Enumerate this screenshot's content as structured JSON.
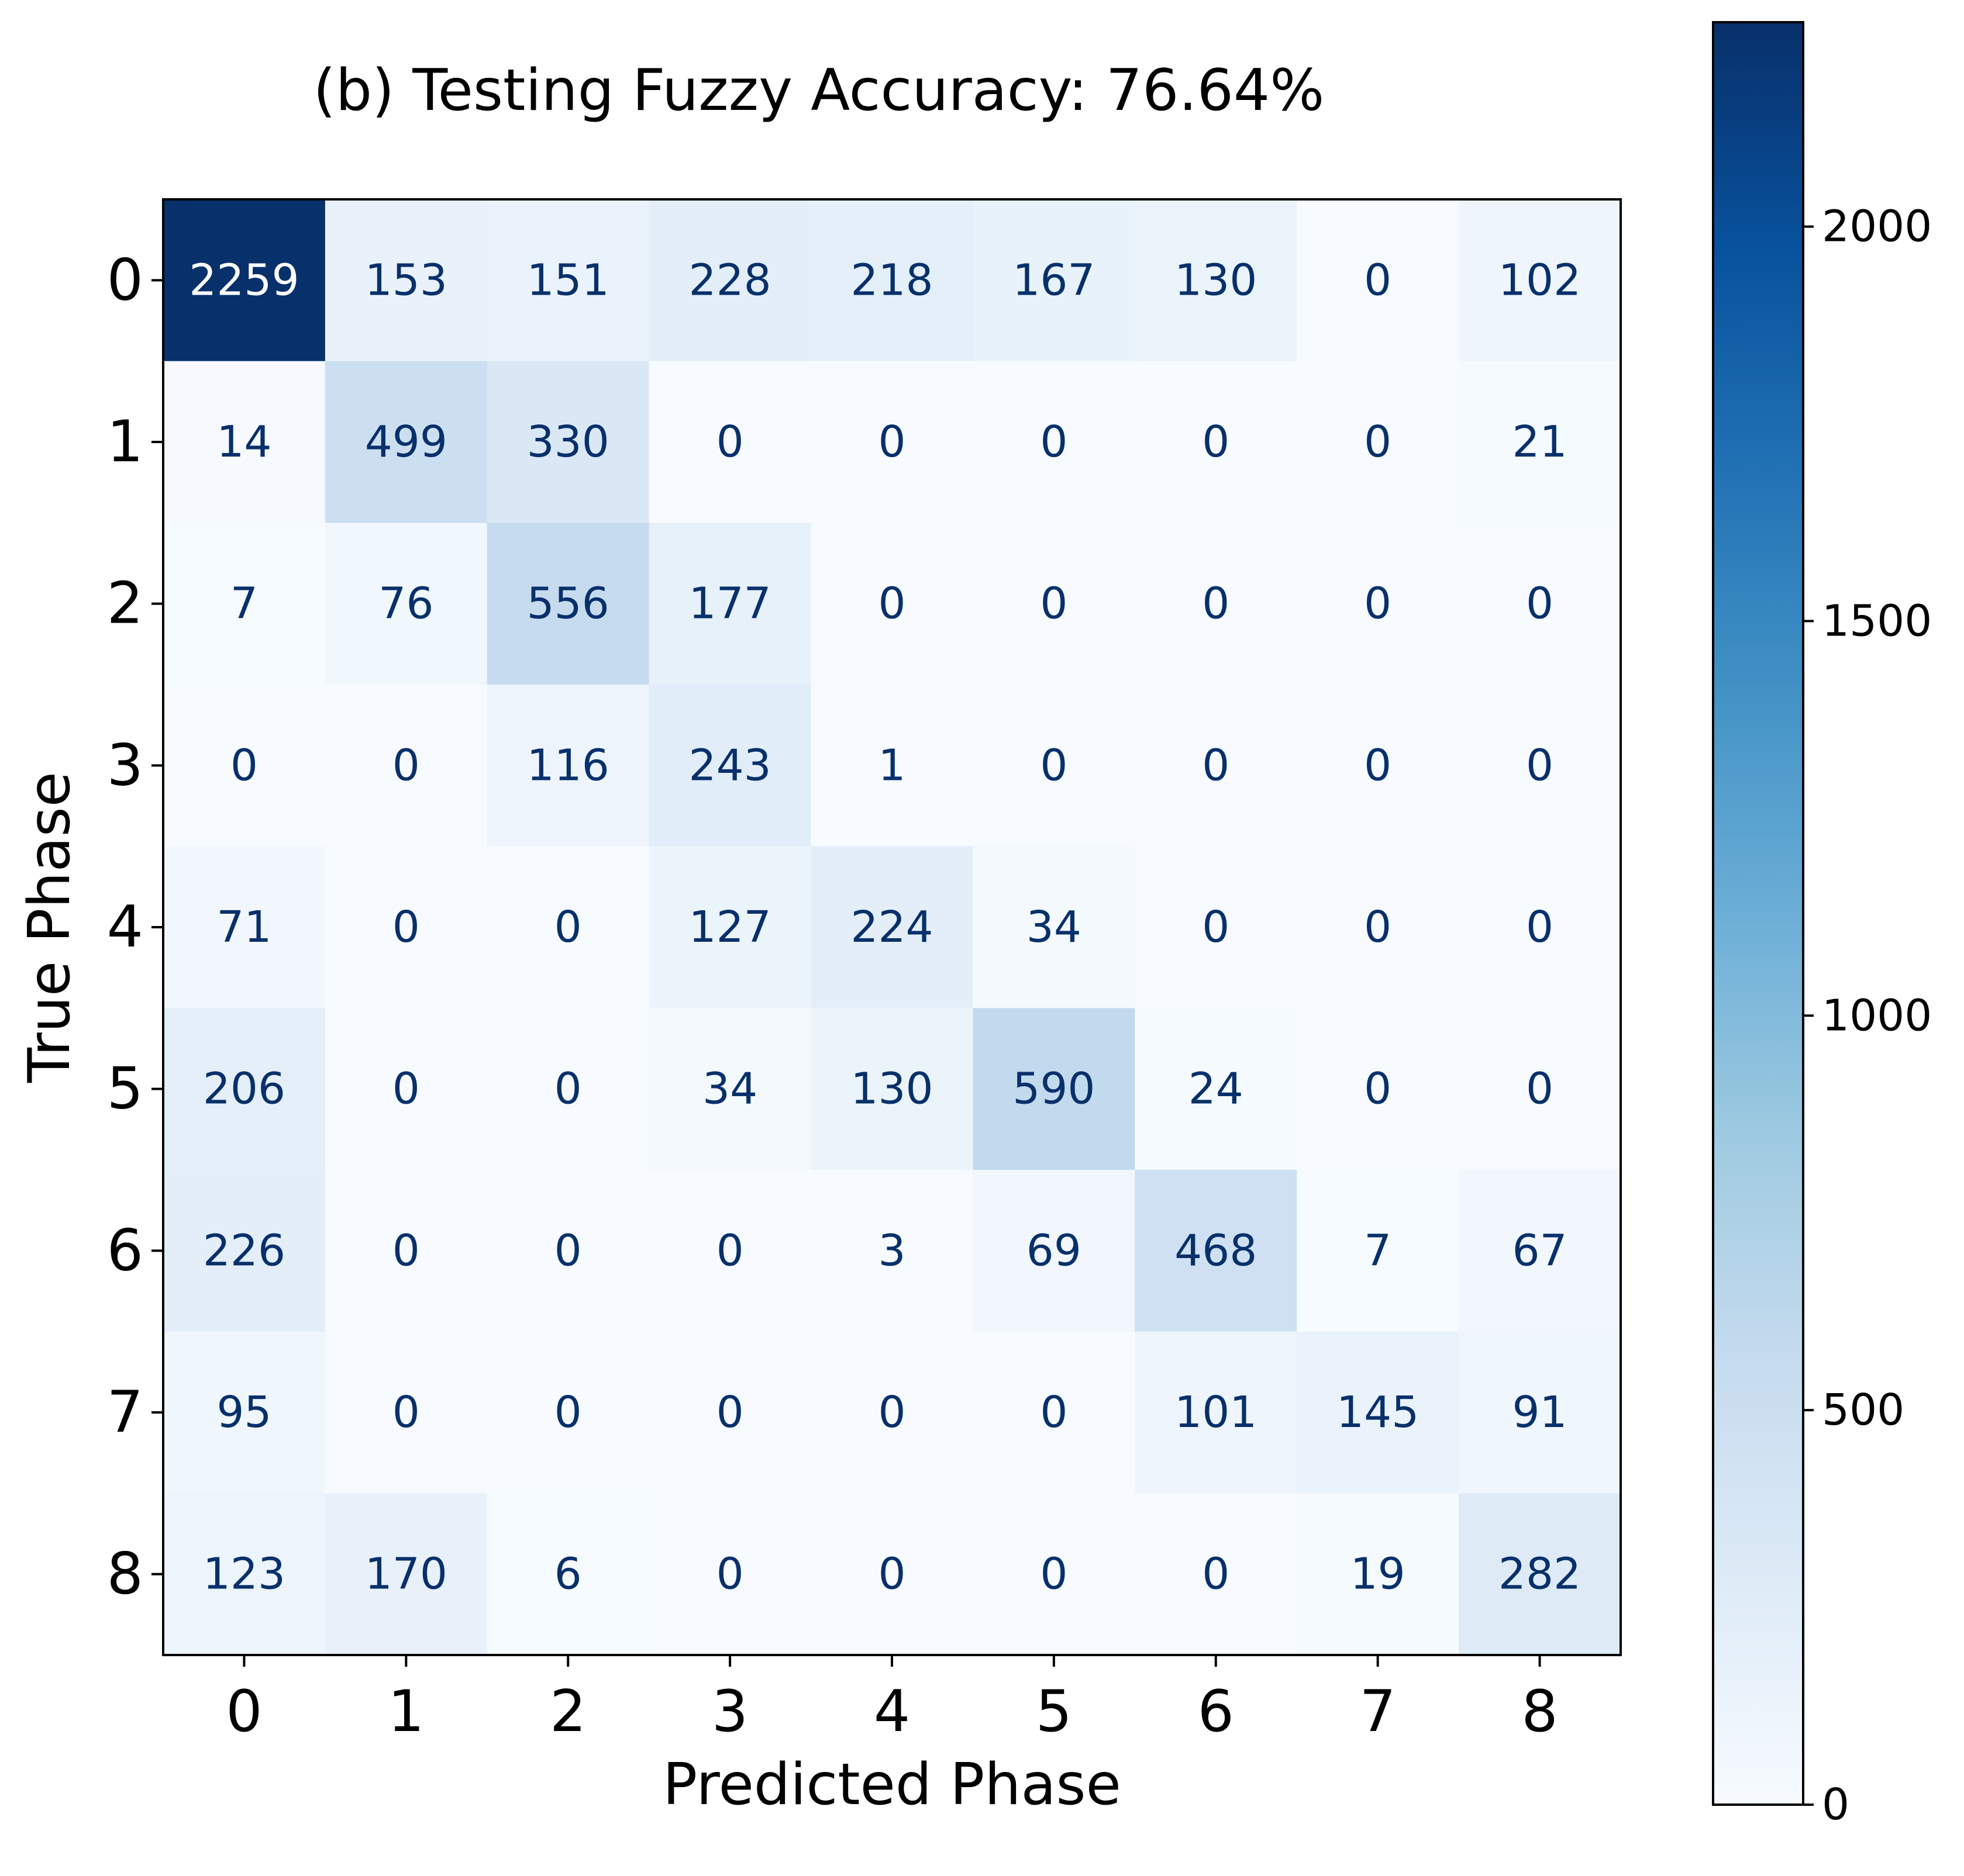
{
  "chart_data": {
    "type": "heatmap",
    "title": "(b) Testing Fuzzy Accuracy: 76.64%",
    "xlabel": "Predicted Phase",
    "ylabel": "True Phase",
    "x_categories": [
      "0",
      "1",
      "2",
      "3",
      "4",
      "5",
      "6",
      "7",
      "8"
    ],
    "y_categories": [
      "0",
      "1",
      "2",
      "3",
      "4",
      "5",
      "6",
      "7",
      "8"
    ],
    "matrix": [
      [
        2259,
        153,
        151,
        228,
        218,
        167,
        130,
        0,
        102
      ],
      [
        14,
        499,
        330,
        0,
        0,
        0,
        0,
        0,
        21
      ],
      [
        7,
        76,
        556,
        177,
        0,
        0,
        0,
        0,
        0
      ],
      [
        0,
        0,
        116,
        243,
        1,
        0,
        0,
        0,
        0
      ],
      [
        71,
        0,
        0,
        127,
        224,
        34,
        0,
        0,
        0
      ],
      [
        206,
        0,
        0,
        34,
        130,
        590,
        24,
        0,
        0
      ],
      [
        226,
        0,
        0,
        0,
        3,
        69,
        468,
        7,
        67
      ],
      [
        95,
        0,
        0,
        0,
        0,
        0,
        101,
        145,
        91
      ],
      [
        123,
        170,
        6,
        0,
        0,
        0,
        0,
        19,
        282
      ]
    ],
    "colormap": "Blues",
    "colorbar": {
      "range": [
        0,
        2259
      ],
      "ticks": [
        0,
        500,
        1000,
        1500,
        2000
      ],
      "tick_labels": [
        "0",
        "500",
        "1000",
        "1500",
        "2000"
      ]
    },
    "text_color_light": "#ffffff",
    "text_color_dark": "#08306b",
    "grid": false
  }
}
